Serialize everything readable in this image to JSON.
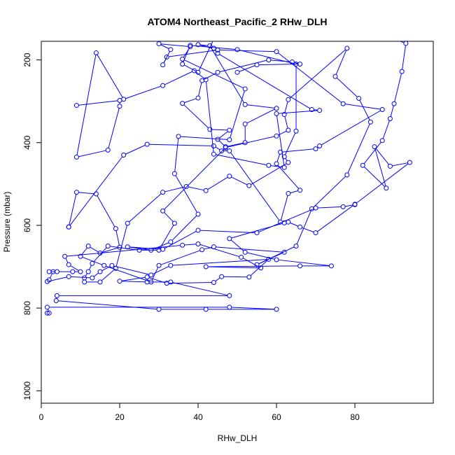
{
  "chart_data": {
    "type": "line",
    "title": "ATOM4 Northeast_Pacific_2 RHw_DLH",
    "xlabel": "RHw_DLH",
    "ylabel": "Pressure (mbar)",
    "xlim": [
      0,
      100
    ],
    "ylim": [
      1030,
      155
    ],
    "y_reversed": true,
    "x_ticks": [
      0,
      20,
      40,
      60,
      80
    ],
    "y_ticks": [
      200,
      400,
      600,
      800,
      1000
    ],
    "grid": false,
    "marker": "open-circle",
    "series_color": "#0000ff",
    "series": [
      {
        "points": [
          [
            1.5,
            812
          ],
          [
            2,
            812
          ],
          [
            1.5,
            798
          ],
          [
            48,
            798
          ],
          [
            60,
            803
          ],
          [
            42,
            803
          ],
          [
            30,
            803
          ],
          [
            3.8,
            782
          ],
          [
            4,
            770
          ],
          [
            48,
            770
          ],
          [
            33,
            737
          ],
          [
            27,
            737
          ],
          [
            20,
            735
          ],
          [
            27,
            725
          ],
          [
            32,
            740
          ],
          [
            44,
            738
          ],
          [
            46,
            724
          ],
          [
            53,
            725
          ],
          [
            58,
            682
          ],
          [
            33,
            697
          ],
          [
            28,
            720
          ],
          [
            18,
            697
          ],
          [
            15,
            712
          ],
          [
            13,
            727
          ],
          [
            7,
            724
          ],
          [
            1.5,
            736
          ],
          [
            2,
            732
          ],
          [
            3,
            712
          ],
          [
            2,
            712
          ],
          [
            4,
            712
          ],
          [
            8,
            712
          ],
          [
            10,
            712
          ],
          [
            7,
            695
          ],
          [
            6,
            675
          ],
          [
            36,
            648
          ],
          [
            40,
            645
          ],
          [
            51,
            677
          ],
          [
            56,
            703
          ],
          [
            42,
            700
          ],
          [
            66,
            698
          ],
          [
            74,
            698
          ],
          [
            60,
            683
          ],
          [
            52,
            665
          ],
          [
            48,
            632
          ],
          [
            62,
            594
          ],
          [
            63,
            592
          ],
          [
            66,
            604
          ],
          [
            70,
            618
          ],
          [
            80,
            549
          ],
          [
            94,
            448
          ],
          [
            89,
            457
          ],
          [
            85,
            410
          ],
          [
            88,
            510
          ],
          [
            82,
            455
          ],
          [
            87,
            395
          ],
          [
            89,
            342
          ],
          [
            90,
            306
          ],
          [
            92,
            228
          ],
          [
            93,
            160
          ],
          [
            90,
            150
          ]
        ]
      },
      {
        "points": [
          [
            7,
            604
          ],
          [
            9,
            520
          ],
          [
            14,
            524
          ],
          [
            19,
            608
          ],
          [
            20,
            653
          ],
          [
            15,
            667
          ],
          [
            12,
            650
          ],
          [
            10,
            675
          ],
          [
            16,
            697
          ],
          [
            28,
            737
          ],
          [
            30,
            697
          ],
          [
            41,
            659
          ],
          [
            44,
            652
          ],
          [
            62,
            665
          ],
          [
            55,
            695
          ],
          [
            65,
            650
          ],
          [
            69,
            560
          ],
          [
            78,
            478
          ],
          [
            84,
            350
          ],
          [
            81,
            293
          ],
          [
            75,
            240
          ],
          [
            78,
            172
          ],
          [
            63,
            296
          ],
          [
            62,
            332
          ],
          [
            63,
            370
          ],
          [
            60,
            384
          ],
          [
            47,
            412
          ],
          [
            31,
            565
          ],
          [
            34,
            595
          ],
          [
            30,
            660
          ],
          [
            25,
            660
          ],
          [
            17,
            650
          ],
          [
            13,
            692
          ],
          [
            12,
            712
          ],
          [
            11,
            727
          ],
          [
            11,
            737
          ],
          [
            15,
            737
          ],
          [
            19,
            704
          ],
          [
            22,
            595
          ],
          [
            31,
            520
          ],
          [
            37,
            506
          ],
          [
            42,
            516
          ],
          [
            48,
            481
          ],
          [
            53,
            504
          ],
          [
            63,
            448
          ],
          [
            62,
            434
          ],
          [
            65,
            372
          ],
          [
            65,
            210
          ],
          [
            50,
            175
          ],
          [
            38,
            165
          ],
          [
            36,
            210
          ],
          [
            40,
            230
          ],
          [
            44,
            150
          ]
        ]
      },
      {
        "points": [
          [
            7,
            604
          ],
          [
            21,
            430
          ],
          [
            27,
            404
          ],
          [
            44,
            408
          ],
          [
            46,
            420
          ],
          [
            48,
            420
          ],
          [
            61,
            592
          ],
          [
            63,
            523
          ],
          [
            66,
            515
          ],
          [
            60,
            451
          ],
          [
            61,
            423
          ],
          [
            70,
            415
          ],
          [
            71,
            408
          ],
          [
            87,
            320
          ],
          [
            77,
            306
          ],
          [
            60,
            180
          ],
          [
            45,
            176
          ],
          [
            32,
            193
          ],
          [
            31,
            212
          ],
          [
            33,
            175
          ],
          [
            30,
            161
          ],
          [
            38,
            168
          ],
          [
            36,
            198
          ],
          [
            52,
            270
          ],
          [
            48,
            393
          ],
          [
            35,
            385
          ],
          [
            34,
            475
          ],
          [
            40,
            573
          ],
          [
            33,
            640
          ],
          [
            28,
            660
          ],
          [
            22,
            652
          ],
          [
            31,
            658
          ],
          [
            40,
            612
          ],
          [
            55,
            618
          ],
          [
            70,
            558
          ],
          [
            77,
            555
          ],
          [
            80,
            550
          ]
        ]
      },
      {
        "points": [
          [
            9,
            310
          ],
          [
            20,
            298
          ],
          [
            20,
            312
          ],
          [
            17,
            418
          ],
          [
            9,
            435
          ],
          [
            14,
            183
          ],
          [
            21,
            295
          ],
          [
            31,
            262
          ],
          [
            39,
            226
          ],
          [
            42,
            248
          ],
          [
            44,
            428
          ],
          [
            58,
            455
          ],
          [
            62,
            460
          ],
          [
            60,
            330
          ],
          [
            71,
            322
          ],
          [
            69,
            320
          ],
          [
            45,
            184
          ],
          [
            44,
            172
          ],
          [
            40,
            163
          ],
          [
            43,
            166
          ],
          [
            52,
            308
          ],
          [
            60,
            317
          ],
          [
            52,
            355
          ],
          [
            52,
            400
          ],
          [
            47,
            410
          ],
          [
            45,
            392
          ],
          [
            48,
            370
          ],
          [
            43,
            368
          ],
          [
            36,
            305
          ],
          [
            40,
            292
          ],
          [
            41,
            250
          ],
          [
            45,
            230
          ],
          [
            58,
            200
          ],
          [
            64,
            205
          ],
          [
            66,
            210
          ],
          [
            55,
            212
          ],
          [
            50,
            230
          ]
        ]
      }
    ]
  }
}
